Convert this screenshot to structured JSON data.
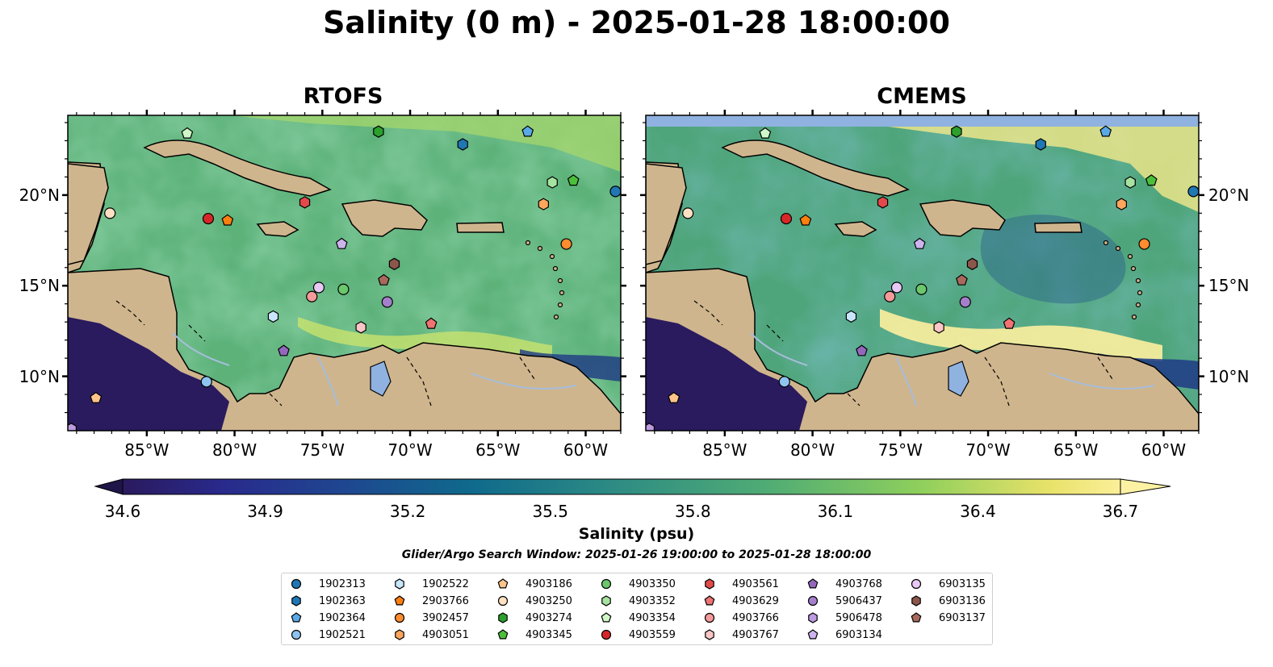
{
  "title": "Salinity (0 m) - 2025-01-28 18:00:00",
  "panels": [
    {
      "name": "rtofs",
      "title": "RTOFS"
    },
    {
      "name": "cmems",
      "title": "CMEMS"
    }
  ],
  "axes": {
    "x_ticks": [
      "85°W",
      "80°W",
      "75°W",
      "70°W",
      "65°W",
      "60°W"
    ],
    "y_ticks": [
      "20°N",
      "15°N",
      "10°N"
    ]
  },
  "colorbar": {
    "label": "Salinity (psu)",
    "ticks": [
      "34.6",
      "34.9",
      "35.2",
      "35.5",
      "35.8",
      "36.1",
      "36.4",
      "36.7"
    ],
    "range": [
      34.6,
      36.7
    ],
    "colormap": "haline",
    "colors": [
      "#2a1a5e",
      "#292a8c",
      "#1f4690",
      "#0f6a8c",
      "#2f8d83",
      "#51ad74",
      "#8fcf5c",
      "#e9e26a",
      "#fcef9a"
    ]
  },
  "search_window": "Glider/Argo Search Window: 2025-01-26 19:00:00 to 2025-01-28 18:00:00",
  "map_colors": {
    "land": "#cfb58d",
    "coast": "#000000",
    "rivers": "#a6bddb",
    "lake": "#8fb2e0"
  },
  "floats": [
    {
      "id": "1902313",
      "marker": "circle",
      "color": "#1f77b4",
      "lon": -58.3,
      "lat": 20.2
    },
    {
      "id": "1902363",
      "marker": "hexagon",
      "color": "#1f77b4",
      "lon": -67.0,
      "lat": 22.8
    },
    {
      "id": "1902364",
      "marker": "pentagon",
      "color": "#5aa9e6",
      "lon": -63.3,
      "lat": 23.5
    },
    {
      "id": "1902521",
      "marker": "circle",
      "color": "#8ec3f0",
      "lon": -81.6,
      "lat": 9.7
    },
    {
      "id": "1902522",
      "marker": "hexagon",
      "color": "#c9e6fb",
      "lon": -77.8,
      "lat": 13.3
    },
    {
      "id": "2903766",
      "marker": "pentagon",
      "color": "#ff7f0e",
      "lon": -80.4,
      "lat": 18.6
    },
    {
      "id": "3902457",
      "marker": "circle",
      "color": "#ff8c2e",
      "lon": -61.1,
      "lat": 17.3
    },
    {
      "id": "4903051",
      "marker": "hexagon",
      "color": "#ffa65c",
      "lon": -62.4,
      "lat": 19.5
    },
    {
      "id": "4903186",
      "marker": "pentagon",
      "color": "#ffc48a",
      "lon": -87.9,
      "lat": 8.8
    },
    {
      "id": "4903250",
      "marker": "circle",
      "color": "#ffe0c2",
      "lon": -87.1,
      "lat": 19.0
    },
    {
      "id": "4903274",
      "marker": "hexagon",
      "color": "#2ca02c",
      "lon": -71.8,
      "lat": 23.5
    },
    {
      "id": "4903345",
      "marker": "pentagon",
      "color": "#4cbf3a",
      "lon": -60.7,
      "lat": 20.8
    },
    {
      "id": "4903350",
      "marker": "circle",
      "color": "#6cc76c",
      "lon": -73.8,
      "lat": 14.8
    },
    {
      "id": "4903352",
      "marker": "hexagon",
      "color": "#a6e3a0",
      "lon": -61.9,
      "lat": 20.7
    },
    {
      "id": "4903354",
      "marker": "pentagon",
      "color": "#cff7c8",
      "lon": -82.7,
      "lat": 23.4
    },
    {
      "id": "4903559",
      "marker": "circle",
      "color": "#d62728",
      "lon": -81.5,
      "lat": 18.7
    },
    {
      "id": "4903561",
      "marker": "hexagon",
      "color": "#e3494a",
      "lon": -76.0,
      "lat": 19.6
    },
    {
      "id": "4903629",
      "marker": "pentagon",
      "color": "#f07272",
      "lon": -68.8,
      "lat": 12.9
    },
    {
      "id": "4903766",
      "marker": "circle",
      "color": "#f59a9a",
      "lon": -75.6,
      "lat": 14.4
    },
    {
      "id": "4903767",
      "marker": "hexagon",
      "color": "#fbc6c6",
      "lon": -72.8,
      "lat": 12.7
    },
    {
      "id": "4903768",
      "marker": "pentagon",
      "color": "#9467bd",
      "lon": -77.2,
      "lat": 11.4
    },
    {
      "id": "5906437",
      "marker": "circle",
      "color": "#a57fcc",
      "lon": -71.3,
      "lat": 14.1
    },
    {
      "id": "5906478",
      "marker": "hexagon",
      "color": "#bd9be0",
      "lon": -89.3,
      "lat": 7.1
    },
    {
      "id": "6903134",
      "marker": "pentagon",
      "color": "#cdb4ee",
      "lon": -73.9,
      "lat": 17.3
    },
    {
      "id": "6903135",
      "marker": "circle",
      "color": "#e8c8f5",
      "lon": -75.2,
      "lat": 14.9
    },
    {
      "id": "6903136",
      "marker": "hexagon",
      "color": "#8c564b",
      "lon": -70.9,
      "lat": 16.2
    },
    {
      "id": "6903137",
      "marker": "pentagon",
      "color": "#a8695c",
      "lon": -71.5,
      "lat": 15.3
    }
  ]
}
